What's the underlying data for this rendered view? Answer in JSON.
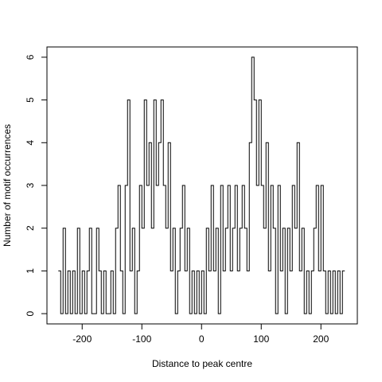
{
  "chart_data": {
    "type": "line",
    "x_label": "Distance to peak centre",
    "y_label": "Number of motif occurrences",
    "x": [
      -240,
      -236,
      -232,
      -228,
      -224,
      -220,
      -216,
      -212,
      -208,
      -204,
      -200,
      -196,
      -192,
      -188,
      -184,
      -180,
      -176,
      -172,
      -168,
      -164,
      -160,
      -156,
      -152,
      -148,
      -144,
      -140,
      -136,
      -132,
      -128,
      -124,
      -120,
      -116,
      -112,
      -108,
      -104,
      -100,
      -96,
      -92,
      -88,
      -84,
      -80,
      -76,
      -72,
      -68,
      -64,
      -60,
      -56,
      -52,
      -48,
      -44,
      -40,
      -36,
      -32,
      -28,
      -24,
      -20,
      -16,
      -12,
      -8,
      -4,
      0,
      4,
      8,
      12,
      16,
      20,
      24,
      28,
      32,
      36,
      40,
      44,
      48,
      52,
      56,
      60,
      64,
      68,
      72,
      76,
      80,
      84,
      88,
      92,
      96,
      100,
      104,
      108,
      112,
      116,
      120,
      124,
      128,
      132,
      136,
      140,
      144,
      148,
      152,
      156,
      160,
      164,
      168,
      172,
      176,
      180,
      184,
      188,
      192,
      196,
      200,
      204,
      208,
      212,
      216,
      220,
      224,
      228,
      232,
      236,
      240
    ],
    "values": [
      1,
      0,
      2,
      0,
      1,
      0,
      1,
      0,
      2,
      0,
      1,
      0,
      1,
      2,
      0,
      0,
      2,
      1,
      0,
      1,
      0,
      0,
      1,
      0,
      2,
      3,
      1,
      0,
      3,
      5,
      1,
      2,
      0,
      1,
      3,
      2,
      5,
      3,
      4,
      2,
      5,
      3,
      4,
      5,
      3,
      2,
      4,
      1,
      2,
      0,
      1,
      2,
      3,
      1,
      2,
      0,
      1,
      0,
      1,
      0,
      1,
      0,
      2,
      1,
      3,
      1,
      2,
      0,
      3,
      1,
      2,
      3,
      1,
      2,
      3,
      1,
      2,
      3,
      2,
      1,
      4,
      6,
      5,
      3,
      5,
      3,
      2,
      4,
      1,
      3,
      2,
      0,
      3,
      1,
      2,
      0,
      2,
      1,
      3,
      2,
      4,
      1,
      2,
      0,
      1,
      0,
      1,
      2,
      3,
      1,
      3,
      1,
      0,
      1,
      0,
      1,
      0,
      1,
      0,
      1,
      1
    ],
    "color": "#000000",
    "step": true,
    "xlim": [
      -259,
      261
    ],
    "ylim": [
      -0.24,
      6.24
    ],
    "xticks": [
      -200,
      -100,
      0,
      100,
      200
    ],
    "yticks": [
      0,
      1,
      2,
      3,
      4,
      5,
      6
    ]
  }
}
